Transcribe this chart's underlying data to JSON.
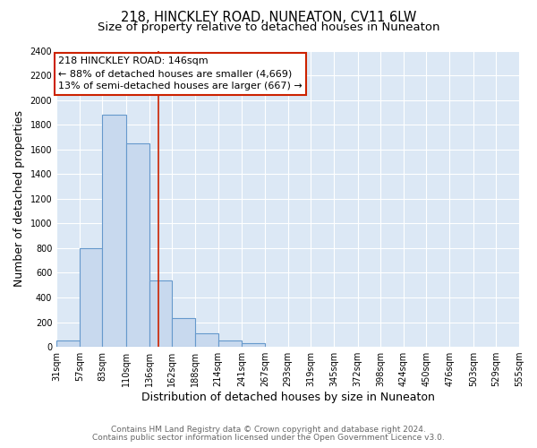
{
  "title": "218, HINCKLEY ROAD, NUNEATON, CV11 6LW",
  "subtitle": "Size of property relative to detached houses in Nuneaton",
  "xlabel": "Distribution of detached houses by size in Nuneaton",
  "ylabel": "Number of detached properties",
  "footer_line1": "Contains HM Land Registry data © Crown copyright and database right 2024.",
  "footer_line2": "Contains public sector information licensed under the Open Government Licence v3.0.",
  "annotation_title": "218 HINCKLEY ROAD: 146sqm",
  "annotation_line1": "← 88% of detached houses are smaller (4,669)",
  "annotation_line2": "13% of semi-detached houses are larger (667) →",
  "bar_left_edges": [
    31,
    57,
    83,
    110,
    136,
    162,
    188,
    214,
    241,
    267,
    293,
    319,
    345,
    372,
    398,
    424,
    450,
    476,
    503,
    529
  ],
  "bar_right_edges": [
    57,
    83,
    110,
    136,
    162,
    188,
    214,
    241,
    267,
    293,
    319,
    345,
    372,
    398,
    424,
    450,
    476,
    503,
    529,
    555
  ],
  "bar_heights": [
    50,
    800,
    1880,
    1650,
    540,
    235,
    110,
    55,
    30,
    0,
    0,
    0,
    0,
    0,
    0,
    0,
    0,
    0,
    0,
    0
  ],
  "tick_labels": [
    "31sqm",
    "57sqm",
    "83sqm",
    "110sqm",
    "136sqm",
    "162sqm",
    "188sqm",
    "214sqm",
    "241sqm",
    "267sqm",
    "293sqm",
    "319sqm",
    "345sqm",
    "372sqm",
    "398sqm",
    "424sqm",
    "450sqm",
    "476sqm",
    "503sqm",
    "529sqm",
    "555sqm"
  ],
  "tick_positions": [
    31,
    57,
    83,
    110,
    136,
    162,
    188,
    214,
    241,
    267,
    293,
    319,
    345,
    372,
    398,
    424,
    450,
    476,
    503,
    529,
    555
  ],
  "bar_color": "#c8d9ee",
  "bar_edge_color": "#6699cc",
  "vline_x": 146,
  "vline_color": "#cc2200",
  "annotation_box_facecolor": "#ffffff",
  "annotation_box_edgecolor": "#cc2200",
  "ylim": [
    0,
    2400
  ],
  "xlim": [
    31,
    555
  ],
  "yticks": [
    0,
    200,
    400,
    600,
    800,
    1000,
    1200,
    1400,
    1600,
    1800,
    2000,
    2200,
    2400
  ],
  "fig_bg_color": "#ffffff",
  "plot_bg_color": "#dce8f5",
  "grid_color": "#ffffff",
  "title_fontsize": 10.5,
  "subtitle_fontsize": 9.5,
  "axis_label_fontsize": 9,
  "tick_label_fontsize": 7,
  "annotation_fontsize": 8,
  "footer_fontsize": 6.5
}
